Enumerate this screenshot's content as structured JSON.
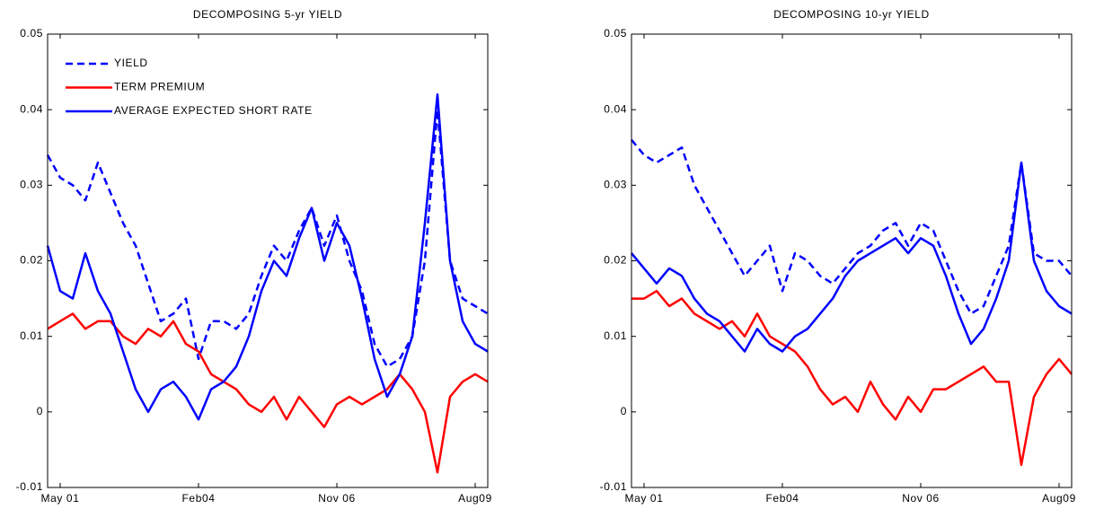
{
  "chart_data": [
    {
      "type": "line",
      "title": "DECOMPOSING 5-yr YIELD",
      "legend": "upper left",
      "categories": [
        null,
        "May 01",
        null,
        null,
        null,
        null,
        null,
        null,
        null,
        null,
        null,
        null,
        "Feb04",
        null,
        null,
        null,
        null,
        null,
        null,
        null,
        null,
        null,
        null,
        "Nov 06",
        null,
        null,
        null,
        null,
        null,
        null,
        null,
        null,
        null,
        null,
        "Aug09",
        null
      ],
      "ylim": [
        -0.01,
        0.05
      ],
      "yticks": [
        -0.01,
        0,
        0.01,
        0.02,
        0.03,
        0.04,
        0.05
      ],
      "series": [
        {
          "name": "YIELD",
          "color": "#0000ff",
          "style": "dashed",
          "values": [
            0.034,
            0.031,
            0.03,
            0.028,
            0.033,
            0.029,
            0.025,
            0.022,
            0.017,
            0.012,
            0.013,
            0.015,
            0.007,
            0.012,
            0.012,
            0.011,
            0.013,
            0.018,
            0.022,
            0.02,
            0.024,
            0.027,
            0.022,
            0.026,
            0.02,
            0.016,
            0.009,
            0.006,
            0.007,
            0.01,
            0.02,
            0.04,
            0.02,
            0.015,
            0.014,
            0.013
          ]
        },
        {
          "name": "TERM PREMIUM",
          "color": "#ff0000",
          "style": "solid",
          "values": [
            0.011,
            0.012,
            0.013,
            0.011,
            0.012,
            0.012,
            0.01,
            0.009,
            0.011,
            0.01,
            0.012,
            0.009,
            0.008,
            0.005,
            0.004,
            0.003,
            0.001,
            0.0,
            0.002,
            -0.001,
            0.002,
            0.0,
            -0.002,
            0.001,
            0.002,
            0.001,
            0.002,
            0.003,
            0.005,
            0.003,
            0.0,
            -0.008,
            0.002,
            0.004,
            0.005,
            0.004
          ]
        },
        {
          "name": "AVERAGE EXPECTED SHORT RATE",
          "color": "#0000ff",
          "style": "solid",
          "values": [
            0.022,
            0.016,
            0.015,
            0.021,
            0.016,
            0.013,
            0.008,
            0.003,
            0.0,
            0.003,
            0.004,
            0.002,
            -0.001,
            0.003,
            0.004,
            0.006,
            0.01,
            0.016,
            0.02,
            0.018,
            0.023,
            0.027,
            0.02,
            0.025,
            0.022,
            0.015,
            0.007,
            0.002,
            0.005,
            0.01,
            0.025,
            0.042,
            0.02,
            0.012,
            0.009,
            0.008
          ]
        }
      ]
    },
    {
      "type": "line",
      "title": "DECOMPOSING 10-yr YIELD",
      "categories": [
        null,
        "May 01",
        null,
        null,
        null,
        null,
        null,
        null,
        null,
        null,
        null,
        null,
        "Feb04",
        null,
        null,
        null,
        null,
        null,
        null,
        null,
        null,
        null,
        null,
        "Nov 06",
        null,
        null,
        null,
        null,
        null,
        null,
        null,
        null,
        null,
        null,
        "Aug09",
        null
      ],
      "ylim": [
        -0.01,
        0.05
      ],
      "yticks": [
        -0.01,
        0,
        0.01,
        0.02,
        0.03,
        0.04,
        0.05
      ],
      "series": [
        {
          "color": "#0000ff",
          "style": "dashed",
          "values": [
            0.036,
            0.034,
            0.033,
            0.034,
            0.035,
            0.03,
            0.027,
            0.024,
            0.021,
            0.018,
            0.02,
            0.022,
            0.016,
            0.021,
            0.02,
            0.018,
            0.017,
            0.019,
            0.021,
            0.022,
            0.024,
            0.025,
            0.022,
            0.025,
            0.024,
            0.02,
            0.016,
            0.013,
            0.014,
            0.018,
            0.022,
            0.033,
            0.021,
            0.02,
            0.02,
            0.018
          ]
        },
        {
          "color": "#ff0000",
          "style": "solid",
          "values": [
            0.015,
            0.015,
            0.016,
            0.014,
            0.015,
            0.013,
            0.012,
            0.011,
            0.012,
            0.01,
            0.013,
            0.01,
            0.009,
            0.008,
            0.006,
            0.003,
            0.001,
            0.002,
            0.0,
            0.004,
            0.001,
            -0.001,
            0.002,
            0.0,
            0.003,
            0.003,
            0.004,
            0.005,
            0.006,
            0.004,
            0.004,
            -0.007,
            0.002,
            0.005,
            0.007,
            0.005
          ]
        },
        {
          "color": "#0000ff",
          "style": "solid",
          "values": [
            0.021,
            0.019,
            0.017,
            0.019,
            0.018,
            0.015,
            0.013,
            0.012,
            0.01,
            0.008,
            0.011,
            0.009,
            0.008,
            0.01,
            0.011,
            0.013,
            0.015,
            0.018,
            0.02,
            0.021,
            0.022,
            0.023,
            0.021,
            0.023,
            0.022,
            0.018,
            0.013,
            0.009,
            0.011,
            0.015,
            0.02,
            0.033,
            0.02,
            0.016,
            0.014,
            0.013
          ]
        }
      ]
    }
  ]
}
